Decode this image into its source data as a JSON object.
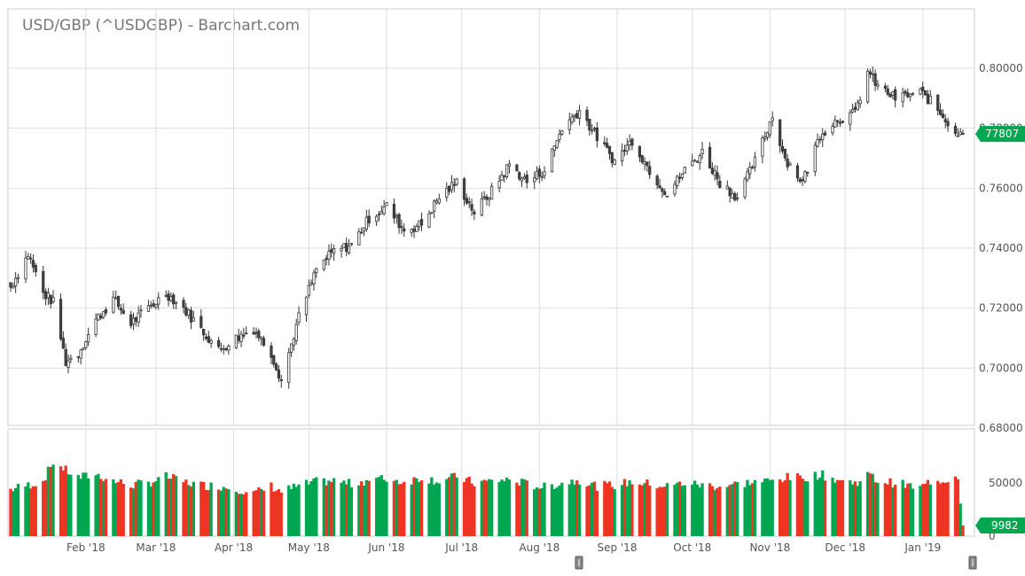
{
  "title": "USD/GBP (^USDGBP) - Barchart.com",
  "chart_data": {
    "type": "candlestick",
    "symbol": "^USDGBP",
    "price_axis": {
      "range": [
        0.68,
        0.81
      ],
      "ticks": [
        "0.80000",
        "0.78000",
        "0.76000",
        "0.74000",
        "0.72000",
        "0.70000",
        "0.68000"
      ],
      "side": "right"
    },
    "volume_axis": {
      "range": [
        0,
        70000
      ],
      "ticks": [
        "50000",
        "0"
      ],
      "side": "right"
    },
    "x_labels": [
      "Feb '18",
      "Mar '18",
      "Apr '18",
      "May '18",
      "Jun '18",
      "Jul '18",
      "Aug '18",
      "Sep '18",
      "Oct '18",
      "Nov '18",
      "Dec '18",
      "Jan '19"
    ],
    "last_price_label": "77807",
    "last_price": 0.7781,
    "last_volume_label": "9982",
    "last_volume": 9982,
    "grid": true,
    "colors": {
      "up": "#00a650",
      "down": "#ee3523",
      "wick": "#333333",
      "grid": "#dddddd",
      "axis": "#cccccc",
      "title": "#777777"
    },
    "anchors": [
      [
        "2018-01-02",
        0.727,
        44000
      ],
      [
        "2018-01-09",
        0.738,
        48000
      ],
      [
        "2018-01-15",
        0.725,
        52000
      ],
      [
        "2018-01-19",
        0.722,
        70000
      ],
      [
        "2018-01-24",
        0.702,
        62000
      ],
      [
        "2018-01-29",
        0.705,
        55000
      ],
      [
        "2018-02-05",
        0.716,
        58000
      ],
      [
        "2018-02-12",
        0.723,
        52000
      ],
      [
        "2018-02-19",
        0.715,
        48000
      ],
      [
        "2018-02-26",
        0.72,
        50000
      ],
      [
        "2018-03-05",
        0.725,
        56000
      ],
      [
        "2018-03-12",
        0.72,
        51000
      ],
      [
        "2018-03-19",
        0.713,
        48000
      ],
      [
        "2018-03-26",
        0.706,
        47000
      ],
      [
        "2018-04-02",
        0.71,
        45000
      ],
      [
        "2018-04-09",
        0.713,
        40000
      ],
      [
        "2018-04-16",
        0.705,
        47000
      ],
      [
        "2018-04-20",
        0.696,
        42000
      ],
      [
        "2018-04-27",
        0.717,
        47000
      ],
      [
        "2018-05-04",
        0.733,
        51000
      ],
      [
        "2018-05-11",
        0.739,
        52000
      ],
      [
        "2018-05-18",
        0.741,
        49000
      ],
      [
        "2018-05-25",
        0.75,
        53000
      ],
      [
        "2018-06-01",
        0.754,
        54000
      ],
      [
        "2018-06-08",
        0.746,
        51000
      ],
      [
        "2018-06-15",
        0.748,
        55000
      ],
      [
        "2018-06-22",
        0.757,
        52000
      ],
      [
        "2018-06-29",
        0.762,
        56000
      ],
      [
        "2018-07-06",
        0.752,
        50000
      ],
      [
        "2018-07-13",
        0.759,
        52000
      ],
      [
        "2018-07-20",
        0.768,
        53000
      ],
      [
        "2018-07-27",
        0.762,
        49000
      ],
      [
        "2018-08-03",
        0.766,
        46000
      ],
      [
        "2018-08-10",
        0.78,
        50000
      ],
      [
        "2018-08-17",
        0.786,
        53000
      ],
      [
        "2018-08-24",
        0.777,
        47000
      ],
      [
        "2018-08-31",
        0.769,
        48000
      ],
      [
        "2018-09-07",
        0.776,
        51000
      ],
      [
        "2018-09-14",
        0.766,
        49000
      ],
      [
        "2018-09-21",
        0.758,
        47000
      ],
      [
        "2018-09-28",
        0.766,
        50000
      ],
      [
        "2018-10-05",
        0.772,
        48000
      ],
      [
        "2018-10-12",
        0.762,
        47000
      ],
      [
        "2018-10-19",
        0.757,
        49000
      ],
      [
        "2018-10-26",
        0.769,
        51000
      ],
      [
        "2018-11-02",
        0.784,
        52000
      ],
      [
        "2018-11-07",
        0.77,
        55000
      ],
      [
        "2018-11-14",
        0.762,
        55000
      ],
      [
        "2018-11-21",
        0.778,
        58000
      ],
      [
        "2018-11-28",
        0.783,
        53000
      ],
      [
        "2018-12-05",
        0.785,
        50000
      ],
      [
        "2018-12-10",
        0.799,
        58000
      ],
      [
        "2018-12-14",
        0.794,
        52000
      ],
      [
        "2018-12-21",
        0.79,
        50000
      ],
      [
        "2018-12-31",
        0.792,
        45000
      ],
      [
        "2019-01-04",
        0.789,
        52000
      ],
      [
        "2019-01-10",
        0.783,
        53000
      ],
      [
        "2019-01-15",
        0.778,
        57000
      ],
      [
        "2019-01-17",
        0.7781,
        9982
      ]
    ]
  }
}
